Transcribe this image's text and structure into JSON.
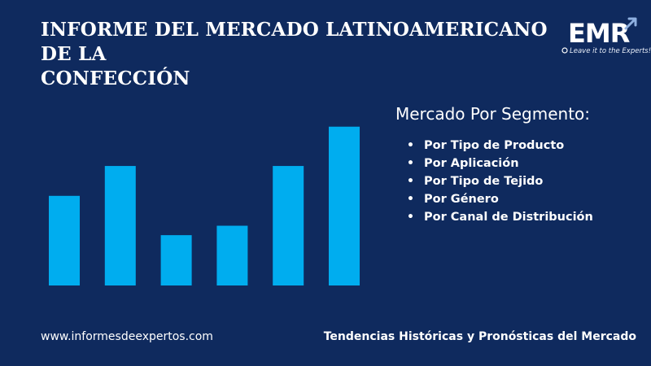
{
  "header": {
    "title_line1": "INFORME DEL MERCADO LATINOAMERICANO DE LA",
    "title_line2": "CONFECCIÓN"
  },
  "logo": {
    "text": "EMR",
    "tagline": "Leave it to the Experts!"
  },
  "segments": {
    "title": "Mercado Por Segmento:",
    "items": [
      "Por Tipo de Producto",
      "Por Aplicación",
      "Por Tipo de Tejido",
      "Por Género",
      "Por Canal de Distribución"
    ]
  },
  "footer": {
    "website": "www.informesdeexpertos.com",
    "tagline": "Tendencias Históricas y Pronósticas del Mercado"
  },
  "colors": {
    "background": "#0f2a5e",
    "bar": "#00adef",
    "text": "#ffffff"
  },
  "chart_data": {
    "type": "bar",
    "categories": [
      "",
      "",
      "",
      "",
      "",
      ""
    ],
    "values": [
      57,
      76,
      32,
      38,
      76,
      101
    ],
    "ylim": [
      0,
      105
    ],
    "grid": false,
    "legend": "none"
  }
}
